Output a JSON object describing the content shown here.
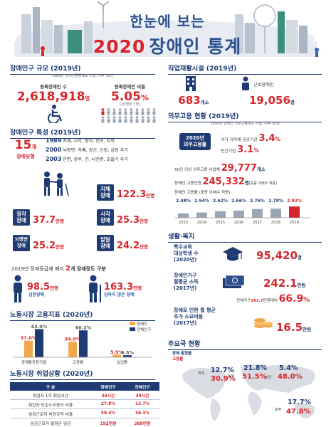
{
  "header": {
    "title_line1": "한눈에 보는",
    "title_year": "2020",
    "title_rest": "장애인 통계"
  },
  "population": {
    "heading": "장애인구 규모 (2019년)",
    "sub": "1989년 장애인등록제도 시행, 이후 30년",
    "registered_label": "등록장애인 수",
    "registered_value": "2,618,918",
    "registered_unit": "명",
    "ratio_label": "등록장애인 비율",
    "ratio_value": "5.05",
    "ratio_unit": "%",
    "ratio_note": "(20명당 1명)"
  },
  "characteristics": {
    "heading": "장애인구 특성 (2019년)",
    "types_value": "15",
    "types_unit": "개",
    "types_label": "장애유형",
    "history": [
      {
        "year": "1989",
        "text": "지체, 시각, 청각, 언어, 지적"
      },
      {
        "year": "2000",
        "text": "뇌병변, 자폐, 정신, 신장, 심장 추가"
      },
      {
        "year": "2003",
        "text": "안면, 장루, 간, 뇌전증, 호흡기 추가"
      }
    ],
    "types": [
      {
        "label": "지체\n장애",
        "value": "122.3",
        "unit": "만명"
      },
      {
        "label": "청각\n장애",
        "value": "37.7",
        "unit": "만명"
      },
      {
        "label": "시각\n장애",
        "value": "25.3",
        "unit": "만명"
      },
      {
        "label": "뇌병변\n장애",
        "value": "25.2",
        "unit": "만명"
      },
      {
        "label": "발달\n장애",
        "value": "24.2",
        "unit": "만명"
      }
    ],
    "grade_text_prefix": "2019년 장애등급제 폐지",
    "grade_value": "2",
    "grade_text_suffix": "개 장애정도 구분",
    "severe_value": "98.5",
    "severe_unit": "만명",
    "severe_label": "심한장애",
    "mild_value": "163.3",
    "mild_unit": "만명",
    "mild_label": "심하지 않은 장애"
  },
  "labor_index": {
    "heading": "노동시장 고용지표 (2020년)",
    "legend": [
      "장애인",
      "전체인구"
    ],
    "colors": {
      "disabled": "#f0a94a",
      "total": "#1f3b73"
    }
  },
  "chart_data": {
    "type": "bar",
    "categories": [
      "경제활동참가율",
      "고용률",
      "실업률"
    ],
    "series": [
      {
        "name": "장애인",
        "values": [
          37.0,
          34.9,
          5.9
        ]
      },
      {
        "name": "전체인구",
        "values": [
          63.0,
          60.2,
          4.5
        ]
      }
    ],
    "value_labels": [
      [
        "37.0%",
        "34.9%",
        "5.9%"
      ],
      [
        "63.0%",
        "60.2%",
        "4.5%"
      ]
    ],
    "ylim": [
      0,
      70
    ]
  },
  "employment": {
    "heading": "노동시장 취업상황 (2020년)",
    "columns": [
      "구 분",
      "장애인구",
      "전체인구"
    ],
    "rows": [
      [
        "취업자 1주 취업시간",
        "36시간",
        "39시간"
      ],
      [
        "취업자 단순노무종사 비율",
        "27.8%",
        "13.7%"
      ],
      [
        "임금근로자 비정규직 비율",
        "59.4%",
        "36.3%"
      ],
      [
        "임금근로자 월평균 임금",
        "192만원",
        "268만원"
      ]
    ]
  },
  "vocational": {
    "heading": "직업재활시설 (2019년)",
    "facility_value": "683",
    "facility_unit": "개소",
    "worker_label": "근로장애인",
    "worker_value": "19,056",
    "worker_unit": "명"
  },
  "quota": {
    "heading": "의무고용 현황 (2019년)",
    "sub": "1990년 장애인 의무고용제도 시행, 이후 30년",
    "rate_box": "2020년\n의무고용률",
    "public_label": "국가·지자체·공공기관",
    "public_value": "3.4",
    "private_label": "민간기업",
    "private_value": "3.1",
    "unit": "%",
    "firms_label": "50인 이상 의무고용 사업체",
    "firms_value": "29,777",
    "firms_unit": "개소",
    "workers_label": "장애인 고용인원",
    "workers_value": "245,332",
    "workers_unit": "명",
    "workers_note": "(중증 이배수 적용)",
    "rate_label": "장애인 고용률 (중증 이배수 적용)",
    "rates": [
      "2.48%",
      "2.54%",
      "2.62%",
      "2.66%",
      "2.76%",
      "2.78%",
      "2.92%"
    ],
    "years": [
      "2013",
      "2014",
      "2015",
      "2016",
      "2017",
      "2018",
      "2019"
    ]
  },
  "welfare": {
    "heading": "생활·복지",
    "special_label": "특수교육\n대상학생 수\n(2020년)",
    "special_value": "95,420",
    "special_unit": "명",
    "income_label": "장애인가구\n월평균 소득\n(2017년)",
    "income_value": "242.1",
    "income_unit": "만원",
    "income_note_prefix": "전체가구",
    "income_note_value": "361.7",
    "income_note_suffix": "만원대비",
    "income_ratio": "66.9",
    "income_ratio_unit": "%",
    "extra_label": "장애로 인한 월 평균\n추가 소요비용\n(2017년)",
    "extra_value": "16.5",
    "extra_unit": "만원"
  },
  "world": {
    "heading": "주요국 현황",
    "legend_rate": "장애 출현율",
    "legend_emp": "고용률",
    "countries": [
      {
        "name": "미국",
        "rate": "12.7%",
        "emp": "30.9%"
      },
      {
        "name": "독일",
        "rate": "21.8%",
        "emp": "51.5%"
      },
      {
        "name": "한국",
        "rate": "5.4%",
        "emp": "48.0%"
      },
      {
        "name": "호주",
        "rate": "17.7%",
        "emp": "47.8%"
      }
    ]
  }
}
